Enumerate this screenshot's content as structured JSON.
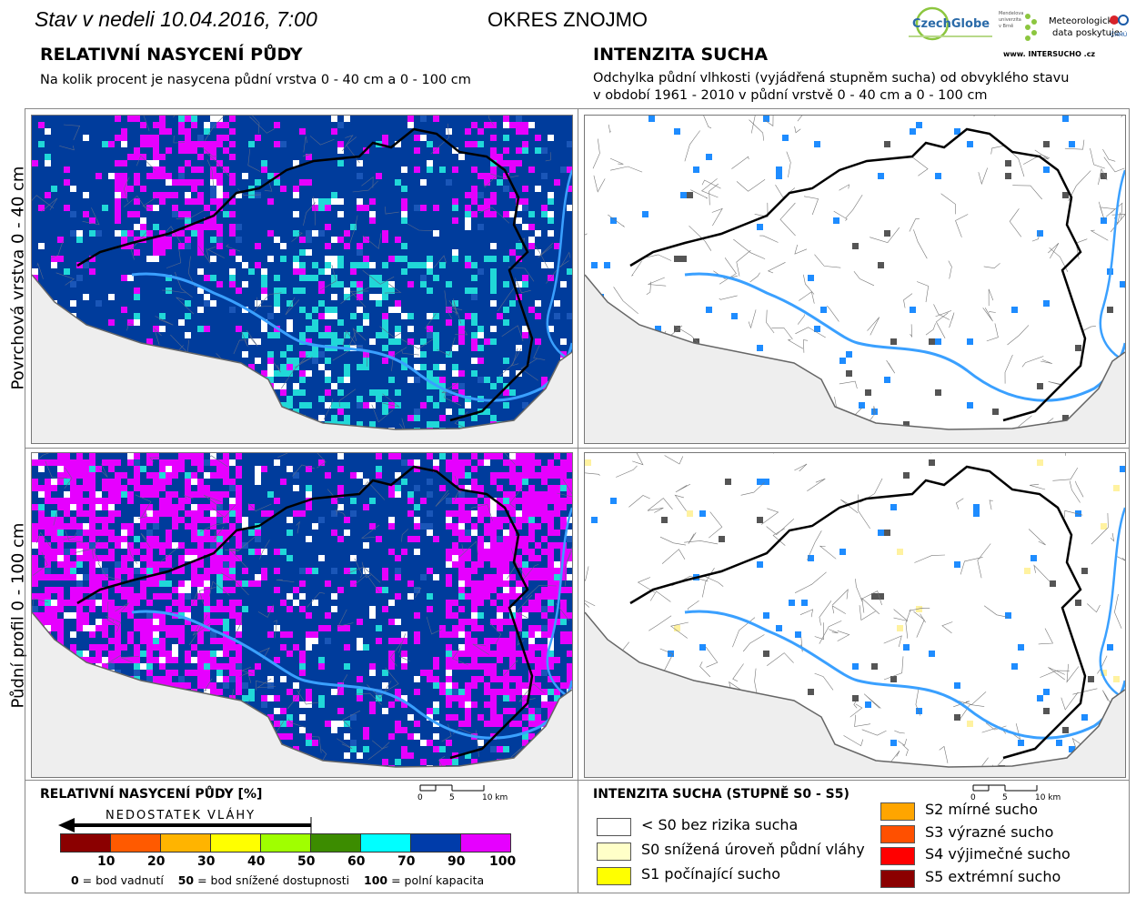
{
  "header": {
    "date_title": "Stav v nedeli 10.04.2016, 7:00",
    "district_title": "OKRES ZNOJMO",
    "logo_czechglobe": "CzechGlobe",
    "logo_mendel": "Mendelova univerzita v Brně",
    "logo_provider": "Meteorologická data poskytuje:",
    "logo_chmu": "ČHMÚ",
    "logo_intersucho": "www. INTERSUCHO .cz"
  },
  "left_section": {
    "title": "RELATIVNÍ NASYCENÍ PŮDY",
    "subtitle": "Na kolik procent je nasycena půdní vrstva 0 - 40 cm a 0 - 100 cm"
  },
  "right_section": {
    "title": "INTENZITA SUCHA",
    "subtitle_line1": "Odchylka půdní vlhkosti (vyjádřená stupněm sucha) od obvyklého stavu",
    "subtitle_line2": "v období 1961 - 2010 v půdní vrstvě 0 - 40 cm a 0 - 100 cm"
  },
  "row_labels": {
    "top": "Povrchová vrstva 0 - 40 cm",
    "bottom": "Půdní profil 0 - 100 cm"
  },
  "scalebar": {
    "labels": [
      "0",
      "5",
      "10 km"
    ]
  },
  "left_legend": {
    "title": "RELATIVNÍ NASYCENÍ PŮDY [%]",
    "arrow_label": "NEDOSTATEK VLÁHY",
    "ticks": [
      "10",
      "20",
      "30",
      "40",
      "50",
      "60",
      "70",
      "90",
      "100"
    ],
    "colors": [
      "#8b0000",
      "#ff5a00",
      "#ffb400",
      "#ffff00",
      "#a0ff00",
      "#3c8c00",
      "#00ffff",
      "#003caa",
      "#e600ff"
    ],
    "note_0_value": "0",
    "note_0_text": " = bod vadnutí",
    "note_50_value": "50",
    "note_50_text": " = bod snížené dostupnosti",
    "note_100_value": "100",
    "note_100_text": " = polní kapacita"
  },
  "right_legend": {
    "title": "INTENZITA SUCHA (STUPNĚ S0 - S5)",
    "items_left": [
      {
        "label": "< S0 bez rizika sucha",
        "color": "#ffffff"
      },
      {
        "label": "S0 snížená úroveň půdní vláhy",
        "color": "#ffffc8"
      },
      {
        "label": "S1 počínající sucho",
        "color": "#ffff00"
      }
    ],
    "items_right": [
      {
        "label": "S2 mírné sucho",
        "color": "#ffa500"
      },
      {
        "label": "S3 výrazné sucho",
        "color": "#ff5000"
      },
      {
        "label": "S4 výjimečné sucho",
        "color": "#ff0000"
      },
      {
        "label": "S5 extrémní sucho",
        "color": "#8b0000"
      }
    ]
  }
}
